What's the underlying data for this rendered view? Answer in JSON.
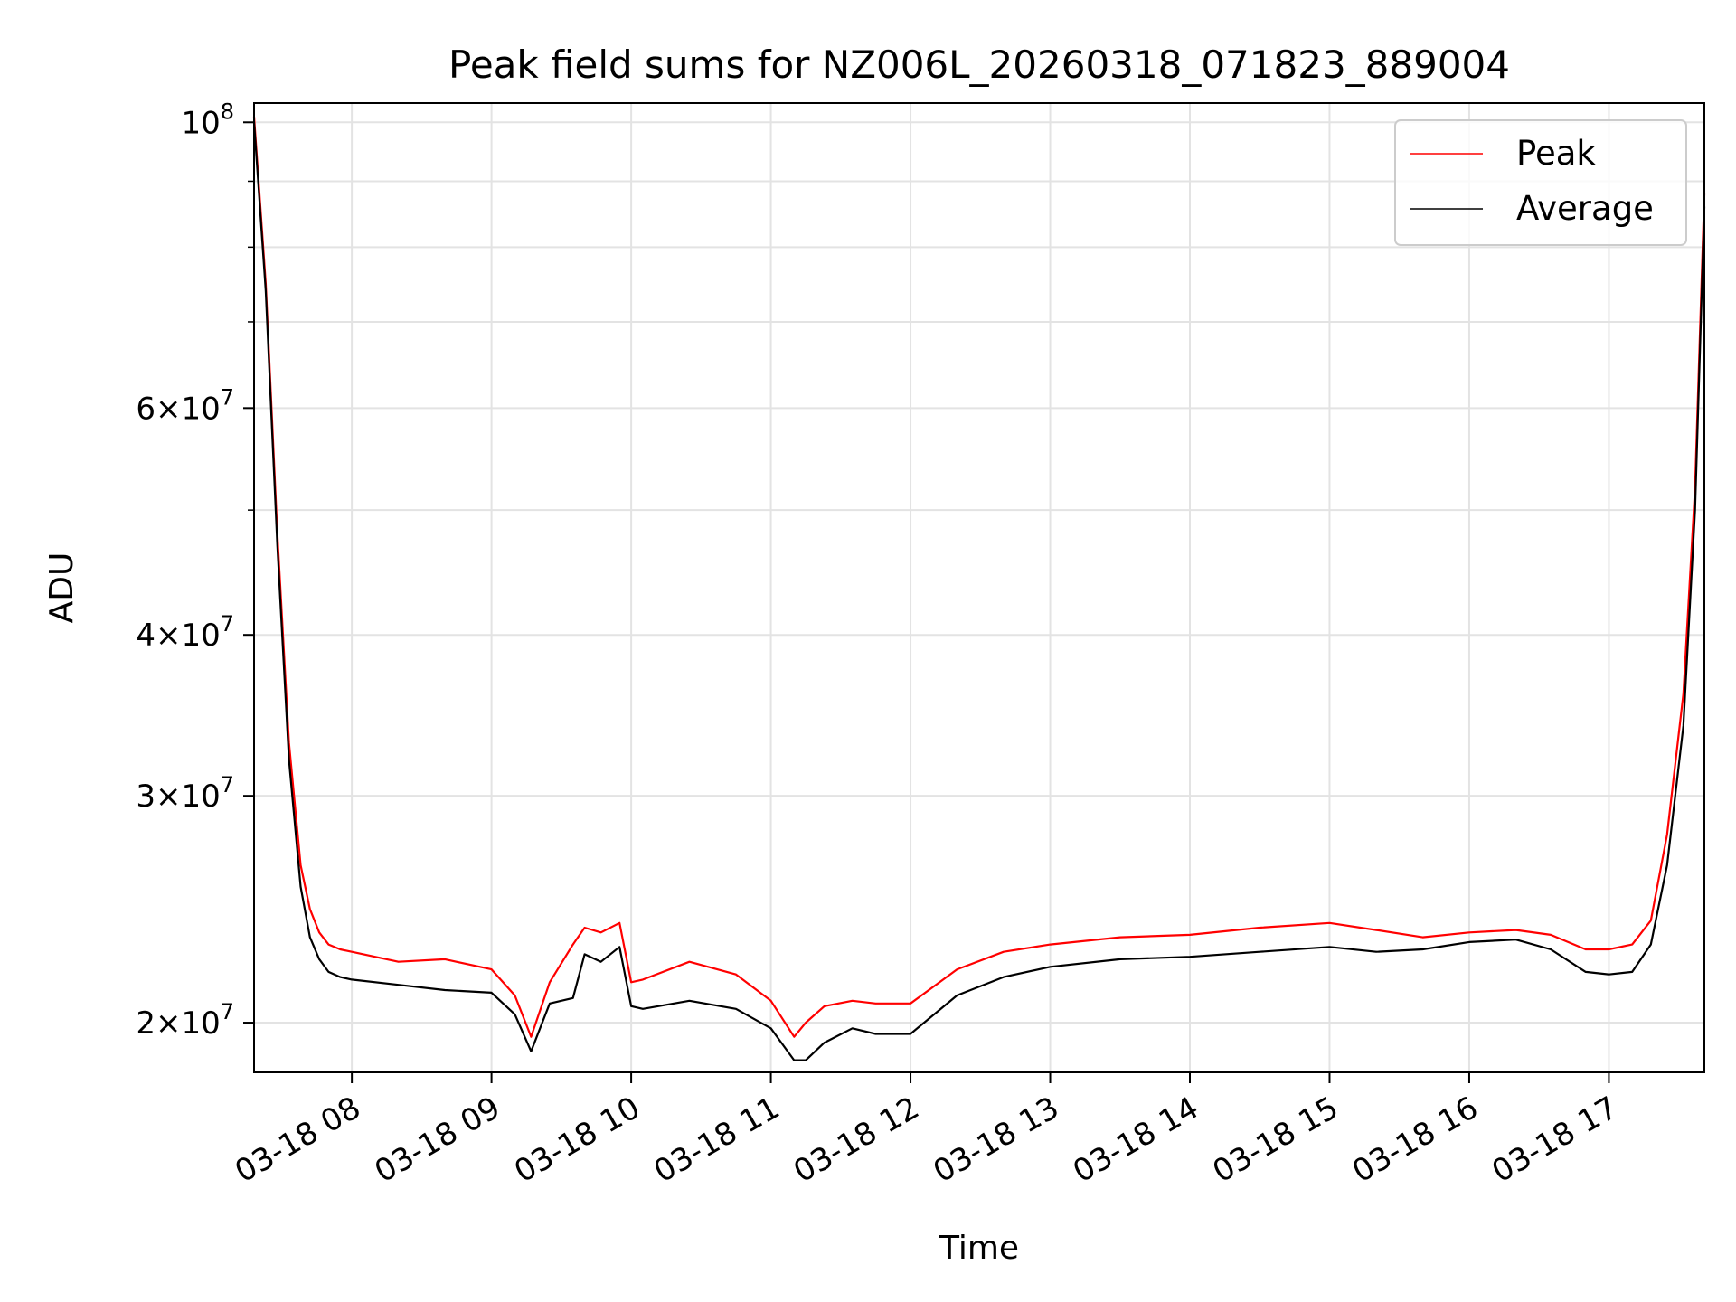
{
  "chart_data": {
    "type": "line",
    "title": "Peak field sums for NZ006L_20260318_071823_889004",
    "xlabel": "Time",
    "ylabel": "ADU",
    "x_range": [
      "2026-03-18 07:18",
      "2026-03-18 17:41"
    ],
    "yscale": "log",
    "ylim": [
      18300000,
      103500000
    ],
    "grid": true,
    "legend_position": "top-right",
    "x_ticks": [
      {
        "time": "2026-03-18 08:00",
        "label": "03-18 08"
      },
      {
        "time": "2026-03-18 09:00",
        "label": "03-18 09"
      },
      {
        "time": "2026-03-18 10:00",
        "label": "03-18 10"
      },
      {
        "time": "2026-03-18 11:00",
        "label": "03-18 11"
      },
      {
        "time": "2026-03-18 12:00",
        "label": "03-18 12"
      },
      {
        "time": "2026-03-18 13:00",
        "label": "03-18 13"
      },
      {
        "time": "2026-03-18 14:00",
        "label": "03-18 14"
      },
      {
        "time": "2026-03-18 15:00",
        "label": "03-18 15"
      },
      {
        "time": "2026-03-18 16:00",
        "label": "03-18 16"
      },
      {
        "time": "2026-03-18 17:00",
        "label": "03-18 17"
      }
    ],
    "y_ticks": [
      {
        "value": 20000000,
        "mantissa": "2",
        "exponent": "7"
      },
      {
        "value": 30000000,
        "mantissa": "3",
        "exponent": "7"
      },
      {
        "value": 40000000,
        "mantissa": "4",
        "exponent": "7"
      },
      {
        "value": 60000000,
        "mantissa": "6",
        "exponent": "7"
      },
      {
        "value": 100000000,
        "mantissa": "",
        "exponent": "8"
      }
    ],
    "y_minor_ticks": [
      50000000,
      70000000,
      80000000,
      90000000
    ],
    "series": [
      {
        "name": "Peak",
        "color": "#ff0000",
        "times": [
          "2026-03-18 07:18",
          "2026-03-18 07:23",
          "2026-03-18 07:28",
          "2026-03-18 07:33",
          "2026-03-18 07:38",
          "2026-03-18 07:42",
          "2026-03-18 07:46",
          "2026-03-18 07:50",
          "2026-03-18 07:55",
          "2026-03-18 08:00",
          "2026-03-18 08:20",
          "2026-03-18 08:40",
          "2026-03-18 09:00",
          "2026-03-18 09:10",
          "2026-03-18 09:17",
          "2026-03-18 09:25",
          "2026-03-18 09:35",
          "2026-03-18 09:40",
          "2026-03-18 09:47",
          "2026-03-18 09:55",
          "2026-03-18 10:00",
          "2026-03-18 10:05",
          "2026-03-18 10:25",
          "2026-03-18 10:45",
          "2026-03-18 11:00",
          "2026-03-18 11:10",
          "2026-03-18 11:15",
          "2026-03-18 11:23",
          "2026-03-18 11:35",
          "2026-03-18 11:45",
          "2026-03-18 12:00",
          "2026-03-18 12:20",
          "2026-03-18 12:40",
          "2026-03-18 13:00",
          "2026-03-18 13:30",
          "2026-03-18 14:00",
          "2026-03-18 14:30",
          "2026-03-18 15:00",
          "2026-03-18 15:20",
          "2026-03-18 15:40",
          "2026-03-18 16:00",
          "2026-03-18 16:20",
          "2026-03-18 16:35",
          "2026-03-18 16:50",
          "2026-03-18 17:00",
          "2026-03-18 17:10",
          "2026-03-18 17:18",
          "2026-03-18 17:25",
          "2026-03-18 17:32",
          "2026-03-18 17:37",
          "2026-03-18 17:41"
        ],
        "values": [
          101000000,
          75000000,
          48000000,
          33000000,
          26500000,
          24500000,
          23500000,
          23000000,
          22800000,
          22700000,
          22300000,
          22400000,
          22000000,
          21000000,
          19500000,
          21500000,
          23000000,
          23700000,
          23500000,
          23900000,
          21500000,
          21600000,
          22300000,
          21800000,
          20800000,
          19500000,
          20000000,
          20600000,
          20800000,
          20700000,
          20700000,
          22000000,
          22700000,
          23000000,
          23300000,
          23400000,
          23700000,
          23900000,
          23600000,
          23300000,
          23500000,
          23600000,
          23400000,
          22800000,
          22800000,
          23000000,
          24000000,
          28000000,
          36000000,
          52000000,
          88000000
        ]
      },
      {
        "name": "Average",
        "color": "#000000",
        "times": [
          "2026-03-18 07:18",
          "2026-03-18 07:23",
          "2026-03-18 07:28",
          "2026-03-18 07:33",
          "2026-03-18 07:38",
          "2026-03-18 07:42",
          "2026-03-18 07:46",
          "2026-03-18 07:50",
          "2026-03-18 07:55",
          "2026-03-18 08:00",
          "2026-03-18 08:20",
          "2026-03-18 08:40",
          "2026-03-18 09:00",
          "2026-03-18 09:10",
          "2026-03-18 09:17",
          "2026-03-18 09:25",
          "2026-03-18 09:35",
          "2026-03-18 09:40",
          "2026-03-18 09:47",
          "2026-03-18 09:55",
          "2026-03-18 10:00",
          "2026-03-18 10:05",
          "2026-03-18 10:25",
          "2026-03-18 10:45",
          "2026-03-18 11:00",
          "2026-03-18 11:10",
          "2026-03-18 11:15",
          "2026-03-18 11:23",
          "2026-03-18 11:35",
          "2026-03-18 11:45",
          "2026-03-18 12:00",
          "2026-03-18 12:20",
          "2026-03-18 12:40",
          "2026-03-18 13:00",
          "2026-03-18 13:30",
          "2026-03-18 14:00",
          "2026-03-18 14:30",
          "2026-03-18 15:00",
          "2026-03-18 15:20",
          "2026-03-18 15:40",
          "2026-03-18 16:00",
          "2026-03-18 16:20",
          "2026-03-18 16:35",
          "2026-03-18 16:50",
          "2026-03-18 17:00",
          "2026-03-18 17:10",
          "2026-03-18 17:18",
          "2026-03-18 17:25",
          "2026-03-18 17:32",
          "2026-03-18 17:37",
          "2026-03-18 17:41"
        ],
        "values": [
          100000000,
          74000000,
          47000000,
          32000000,
          25500000,
          23300000,
          22400000,
          21900000,
          21700000,
          21600000,
          21400000,
          21200000,
          21100000,
          20300000,
          19000000,
          20700000,
          20900000,
          22600000,
          22300000,
          22900000,
          20600000,
          20500000,
          20800000,
          20500000,
          19800000,
          18700000,
          18700000,
          19300000,
          19800000,
          19600000,
          19600000,
          21000000,
          21700000,
          22100000,
          22400000,
          22500000,
          22700000,
          22900000,
          22700000,
          22800000,
          23100000,
          23200000,
          22800000,
          21900000,
          21800000,
          21900000,
          23000000,
          26500000,
          34000000,
          50000000,
          86000000
        ]
      }
    ]
  }
}
